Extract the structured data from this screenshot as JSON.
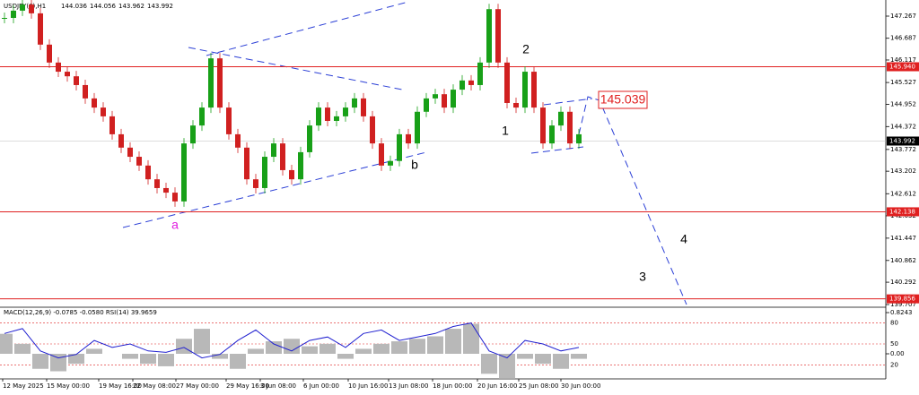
{
  "chart_data": {
    "type": "candlestick",
    "title": "USDJPY(€),H1",
    "ohlc": [
      144.036,
      144.056,
      143.962,
      143.992
    ],
    "closes": [
      147.22,
      147.41,
      147.57,
      147.34,
      146.52,
      146.05,
      145.81,
      145.69,
      145.46,
      145.11,
      144.87,
      144.64,
      144.17,
      143.82,
      143.58,
      143.35,
      142.99,
      142.76,
      142.64,
      142.41,
      143.93,
      144.4,
      144.87,
      146.16,
      144.87,
      144.17,
      143.82,
      142.99,
      142.76,
      143.58,
      143.93,
      143.23,
      142.99,
      143.7,
      144.4,
      144.87,
      144.52,
      144.64,
      144.87,
      145.11,
      144.64,
      143.93,
      143.35,
      143.47,
      144.17,
      143.93,
      144.76,
      145.11,
      145.22,
      144.87,
      145.34,
      145.58,
      145.46,
      146.05,
      147.45,
      146.05,
      144.99,
      144.87,
      145.81,
      144.87,
      143.93,
      144.4,
      144.76,
      143.93,
      144.17
    ],
    "ylim": [
      139.707,
      147.267
    ],
    "yticks": [
      147.267,
      146.687,
      146.117,
      145.527,
      144.952,
      144.372,
      143.772,
      143.202,
      142.612,
      142.032,
      141.447,
      140.862,
      140.292,
      139.707
    ],
    "levels": [
      {
        "value": 145.94,
        "label": "145.940"
      },
      {
        "value": 142.138,
        "label": "142.138"
      },
      {
        "value": 139.856,
        "label": "139.856"
      }
    ],
    "current_price": 143.992,
    "target_label": "145.039",
    "wave_labels": [
      "a",
      "b",
      "1",
      "2",
      "3",
      "4"
    ],
    "dates": [
      "12 May 2025",
      "15 May 00:00",
      "19 May 16:00",
      "22 May 08:00",
      "27 May 00:00",
      "29 May 16:00",
      "3 Jun 08:00",
      "6 Jun 00:00",
      "10 Jun 16:00",
      "13 Jun 08:00",
      "18 Jun 00:00",
      "20 Jun 16:00",
      "25 Jun 08:00",
      "30 Jun 00:00"
    ],
    "indicator_title": "MACD(12,26,9) -0.0785 -0.0580 RSI(14) 39.9659",
    "macd_ticks": [
      0.8243,
      {
        "value": 0,
        "label": "0.00"
      }
    ],
    "rsi_ticks": [
      80,
      50,
      20
    ],
    "rsi": [
      65,
      72,
      40,
      30,
      35,
      55,
      45,
      50,
      40,
      38,
      45,
      30,
      35,
      55,
      70,
      50,
      40,
      55,
      60,
      45,
      65,
      70,
      55,
      60,
      65,
      75,
      80,
      40,
      30,
      55,
      50,
      40,
      45
    ],
    "macd": [
      0.4,
      0.2,
      -0.3,
      -0.35,
      -0.2,
      0.1,
      0,
      -0.1,
      -0.2,
      -0.25,
      0.3,
      0.5,
      -0.1,
      -0.3,
      0.1,
      0.25,
      0.3,
      0.15,
      0.2,
      -0.1,
      0.1,
      0.2,
      0.25,
      0.3,
      0.35,
      0.5,
      0.6,
      -0.4,
      -0.5,
      -0.1,
      -0.2,
      -0.3,
      -0.1
    ]
  }
}
